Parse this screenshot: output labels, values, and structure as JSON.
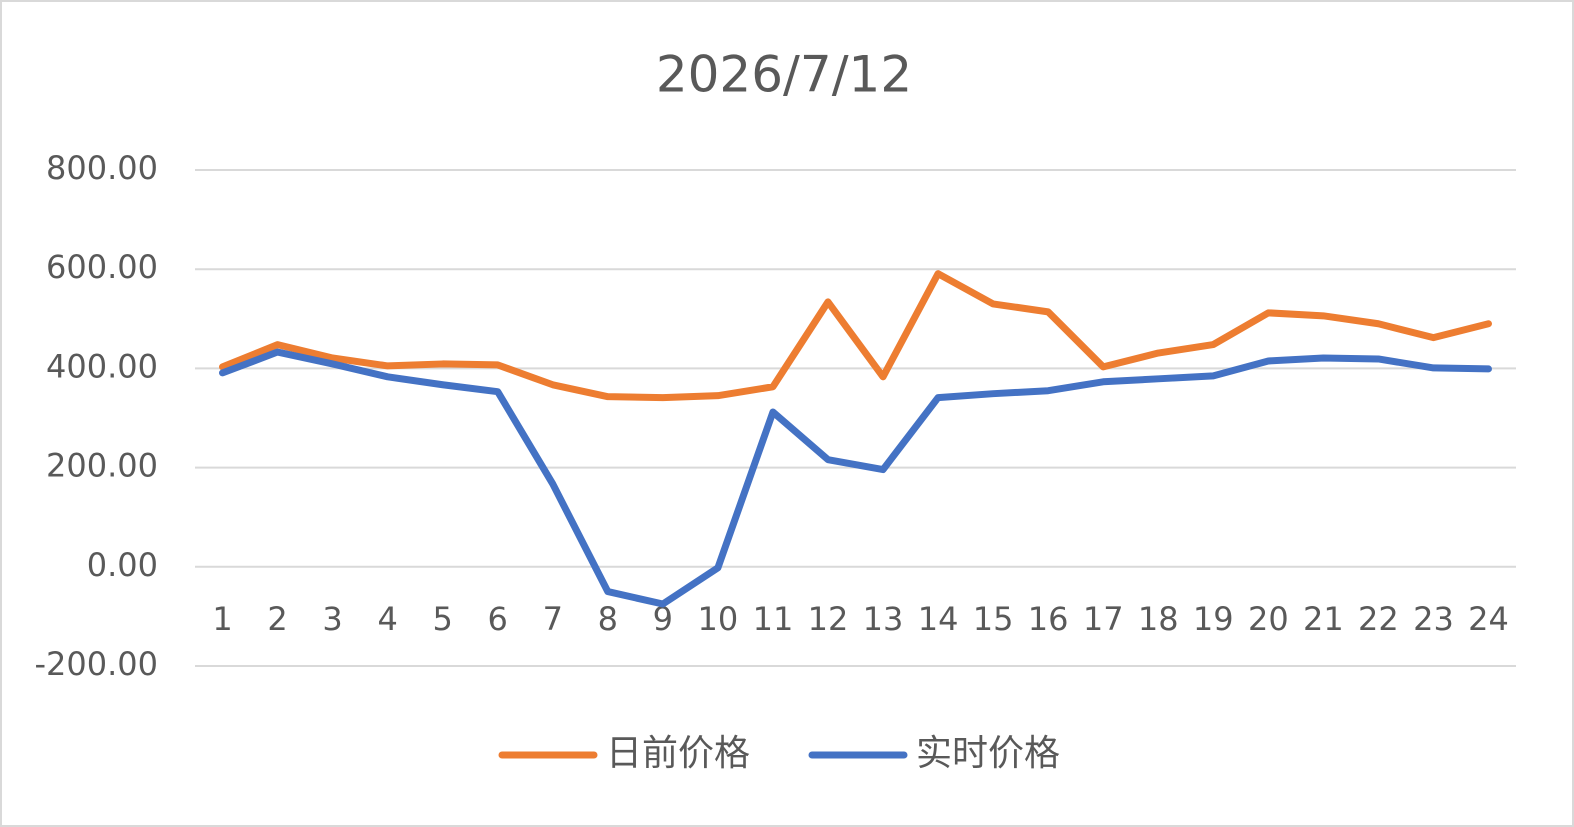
{
  "chart_data": {
    "type": "line",
    "title": "2026/7/12",
    "categories": [
      "1",
      "2",
      "3",
      "4",
      "5",
      "6",
      "7",
      "8",
      "9",
      "10",
      "11",
      "12",
      "13",
      "14",
      "15",
      "16",
      "17",
      "18",
      "19",
      "20",
      "21",
      "22",
      "23",
      "24"
    ],
    "series": [
      {
        "name": "日前价格",
        "color": "#ed7d31",
        "values": [
          403,
          448,
          421,
          405,
          409,
          407,
          367,
          343,
          341,
          345,
          363,
          534,
          383,
          591,
          530,
          514,
          403,
          431,
          448,
          512,
          506,
          490,
          462,
          490
        ]
      },
      {
        "name": "实时价格",
        "color": "#4472c4",
        "values": [
          391,
          433,
          409,
          383,
          367,
          353,
          167,
          -50,
          -75,
          -2,
          312,
          216,
          196,
          341,
          349,
          355,
          373,
          379,
          385,
          415,
          421,
          419,
          401,
          399
        ]
      }
    ],
    "ylim": [
      -200,
      800
    ],
    "yticks": [
      {
        "value": -200,
        "label": "-200.00"
      },
      {
        "value": 0,
        "label": "0.00"
      },
      {
        "value": 200,
        "label": "200.00"
      },
      {
        "value": 400,
        "label": "400.00"
      },
      {
        "value": 600,
        "label": "600.00"
      },
      {
        "value": 800,
        "label": "800.00"
      }
    ],
    "grid": true,
    "legend": "bottom"
  }
}
